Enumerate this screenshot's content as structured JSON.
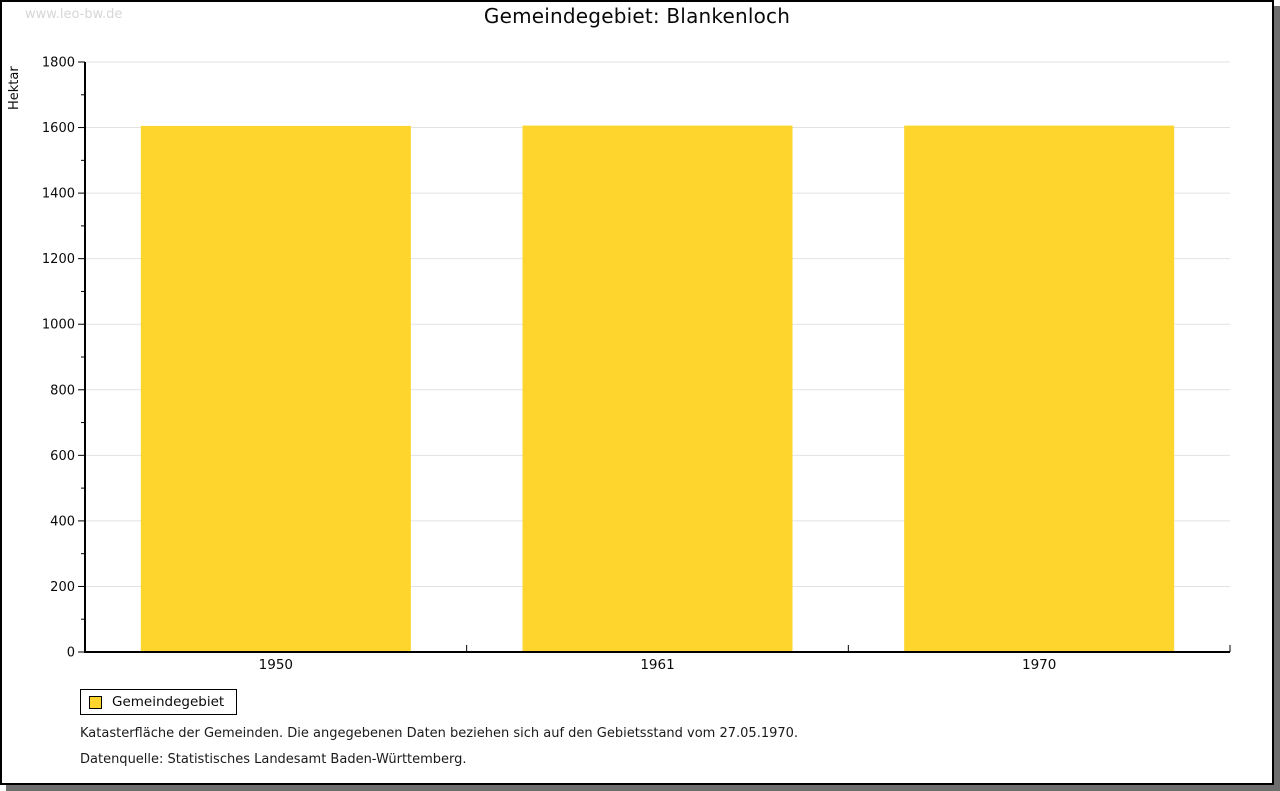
{
  "watermark": "www.leo-bw.de",
  "title": "Gemeindegebiet: Blankenloch",
  "chart_data": {
    "type": "bar",
    "title": "Gemeindegebiet: Blankenloch",
    "categories": [
      "1950",
      "1961",
      "1970"
    ],
    "series": [
      {
        "name": "Gemeindegebiet",
        "values": [
          1605,
          1606,
          1606
        ]
      }
    ],
    "xlabel": "",
    "ylabel": "Hektar",
    "ylim": [
      0,
      1800
    ],
    "ytick_step": 200,
    "ytick_minor_step": 100,
    "grid": true,
    "legend_position": "bottom-left"
  },
  "legend": {
    "label": "Gemeindegebiet"
  },
  "footnotes": [
    "Katasterfläche der Gemeinden. Die angegebenen Daten beziehen sich auf den Gebietsstand vom 27.05.1970.",
    "Datenquelle: Statistisches Landesamt Baden-Württemberg."
  ],
  "colors": {
    "bar": "#FDD52D",
    "grid": "#E2E2E2",
    "axis": "#000000",
    "text": "#0a0a0a",
    "watermark": "#D6D6D6",
    "shadow": "#6E6E6E"
  }
}
